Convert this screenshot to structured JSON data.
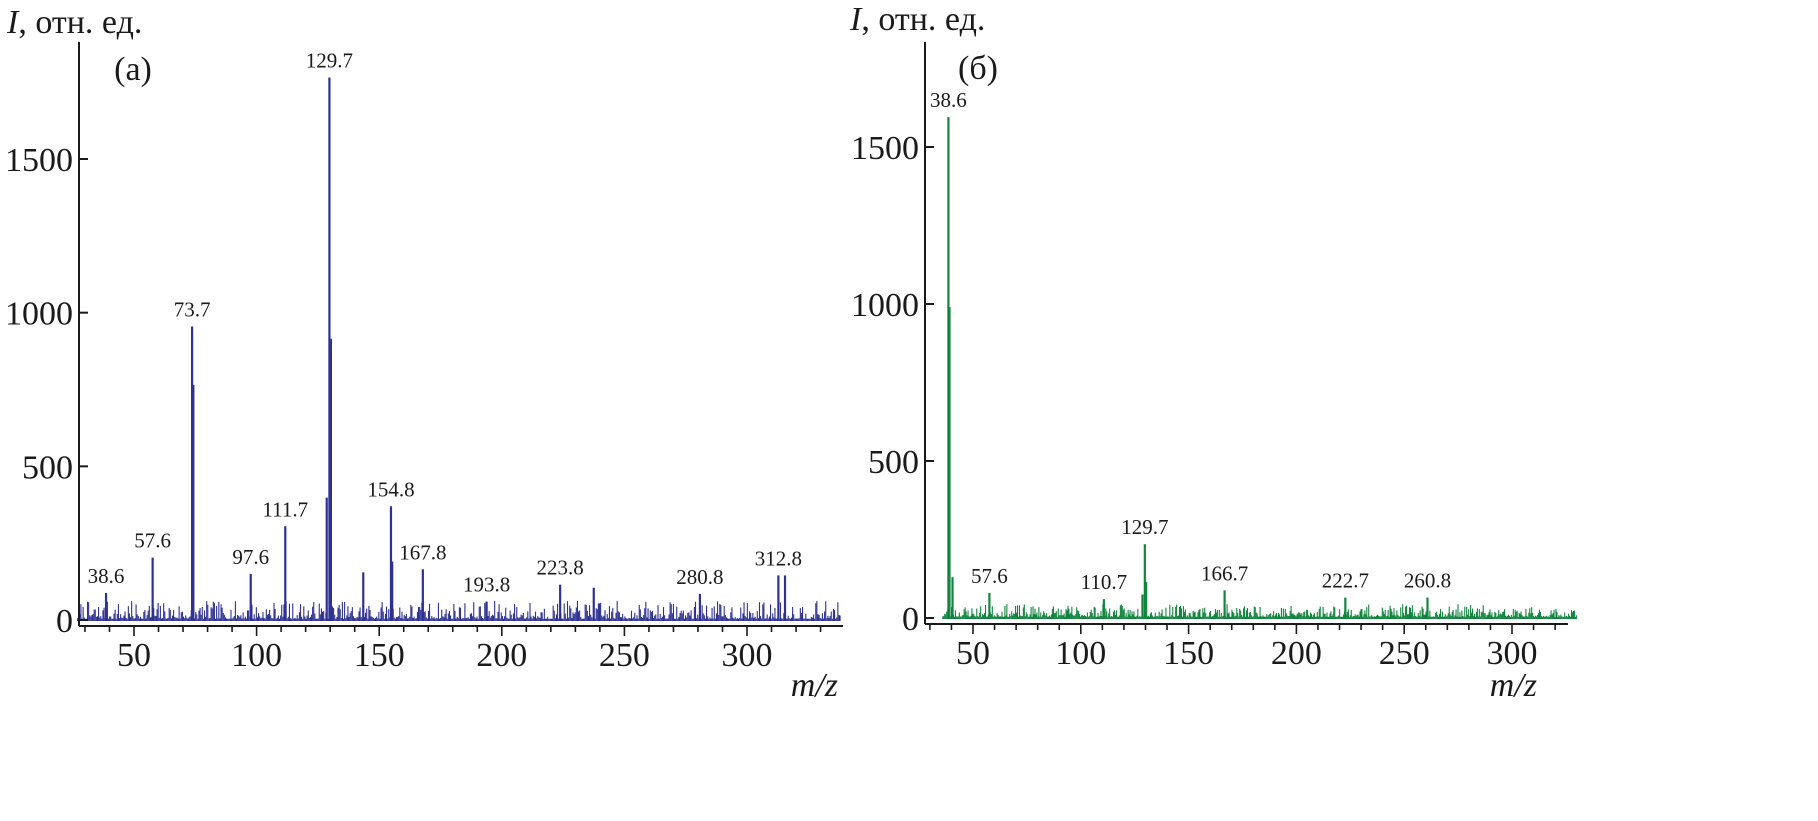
{
  "chart_data": [
    {
      "type": "bar",
      "panel_label": "(а)",
      "ylabel_symbol": "I",
      "ylabel_unit": ", отн. ед.",
      "xlabel": "m/z",
      "xlim": [
        25,
        338
      ],
      "ylim": [
        0,
        1850
      ],
      "xticks": [
        50,
        100,
        150,
        200,
        250,
        300
      ],
      "yticks": [
        0,
        500,
        1000,
        1500
      ],
      "grid": false,
      "color": "#2e3192",
      "peaks": [
        {
          "x": 38.6,
          "y": 88,
          "label": "38.6"
        },
        {
          "x": 57.6,
          "y": 203,
          "label": "57.6"
        },
        {
          "x": 73.7,
          "y": 955,
          "label": "73.7"
        },
        {
          "x": 74.2,
          "y": 765
        },
        {
          "x": 97.6,
          "y": 150,
          "label": "97.6"
        },
        {
          "x": 111.7,
          "y": 305,
          "label": "111.7"
        },
        {
          "x": 128.6,
          "y": 398
        },
        {
          "x": 129.7,
          "y": 1765,
          "label": "129.7"
        },
        {
          "x": 130.3,
          "y": 915
        },
        {
          "x": 143.5,
          "y": 155
        },
        {
          "x": 154.8,
          "y": 370,
          "label": "154.8"
        },
        {
          "x": 155.3,
          "y": 190
        },
        {
          "x": 167.8,
          "y": 165,
          "label": "167.8"
        },
        {
          "x": 193.8,
          "y": 60,
          "label": "193.8"
        },
        {
          "x": 223.8,
          "y": 115,
          "label": "223.8"
        },
        {
          "x": 237.5,
          "y": 105
        },
        {
          "x": 280.8,
          "y": 85,
          "label": "280.8"
        },
        {
          "x": 312.8,
          "y": 145,
          "label": "312.8"
        },
        {
          "x": 315.5,
          "y": 145
        }
      ]
    },
    {
      "type": "bar",
      "panel_label": "(б)",
      "ylabel_symbol": "I",
      "ylabel_unit": ", отн. ед.",
      "xlabel": "m/z",
      "xlim": [
        25,
        330
      ],
      "ylim": [
        0,
        1850
      ],
      "xticks": [
        50,
        100,
        150,
        200,
        250,
        300
      ],
      "yticks": [
        0,
        500,
        1000,
        1500
      ],
      "grid": false,
      "color": "#12853e",
      "peaks": [
        {
          "x": 38.6,
          "y": 1595,
          "label": "38.6"
        },
        {
          "x": 39.1,
          "y": 990
        },
        {
          "x": 40.5,
          "y": 130
        },
        {
          "x": 57.6,
          "y": 80,
          "label": "57.6"
        },
        {
          "x": 110.7,
          "y": 60,
          "label": "110.7"
        },
        {
          "x": 128.6,
          "y": 75
        },
        {
          "x": 129.7,
          "y": 235,
          "label": "129.7"
        },
        {
          "x": 130.3,
          "y": 115
        },
        {
          "x": 166.7,
          "y": 88,
          "label": "166.7"
        },
        {
          "x": 222.7,
          "y": 65,
          "label": "222.7"
        },
        {
          "x": 260.8,
          "y": 65,
          "label": "260.8"
        }
      ]
    }
  ]
}
